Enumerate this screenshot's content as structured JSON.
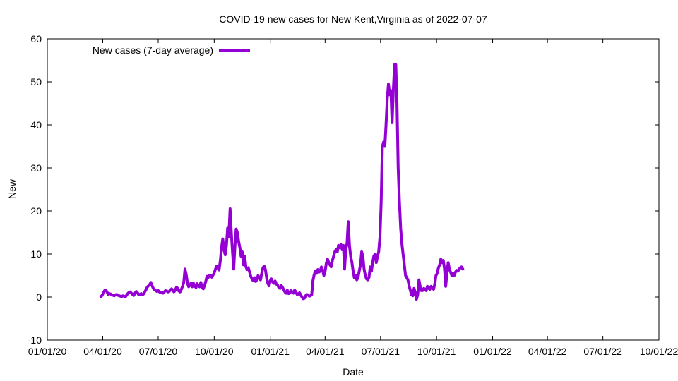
{
  "chart_data": {
    "type": "line",
    "title": "COVID-19 new cases for New Kent,Virginia as of 2022-07-07",
    "xlabel": "Date",
    "ylabel": "New",
    "ylim": [
      -10,
      60
    ],
    "yticks": [
      -10,
      0,
      10,
      20,
      30,
      40,
      50,
      60
    ],
    "xlim_days": [
      0,
      1004
    ],
    "xticks": [
      {
        "day": 0,
        "label": "01/01/20"
      },
      {
        "day": 91,
        "label": "04/01/20"
      },
      {
        "day": 182,
        "label": "07/01/20"
      },
      {
        "day": 274,
        "label": "10/01/20"
      },
      {
        "day": 366,
        "label": "01/01/21"
      },
      {
        "day": 456,
        "label": "04/01/21"
      },
      {
        "day": 547,
        "label": "07/01/21"
      },
      {
        "day": 639,
        "label": "10/01/21"
      },
      {
        "day": 731,
        "label": "01/01/22"
      },
      {
        "day": 821,
        "label": "04/01/22"
      },
      {
        "day": 912,
        "label": "07/01/22"
      },
      {
        "day": 1004,
        "label": "10/01/22"
      }
    ],
    "grid": false,
    "legend_position": "top-left",
    "series": [
      {
        "name": "New cases (7-day average)",
        "color": "#9400d3",
        "points": [
          [
            88,
            0.1
          ],
          [
            90,
            0.4
          ],
          [
            92,
            1.0
          ],
          [
            94,
            1.5
          ],
          [
            96,
            1.6
          ],
          [
            98,
            1.2
          ],
          [
            100,
            0.6
          ],
          [
            102,
            0.8
          ],
          [
            104,
            0.7
          ],
          [
            106,
            0.5
          ],
          [
            108,
            0.4
          ],
          [
            110,
            0.3
          ],
          [
            112,
            0.5
          ],
          [
            114,
            0.6
          ],
          [
            116,
            0.4
          ],
          [
            118,
            0.3
          ],
          [
            120,
            0.2
          ],
          [
            122,
            0.1
          ],
          [
            124,
            0.3
          ],
          [
            126,
            0.2
          ],
          [
            128,
            0.0
          ],
          [
            130,
            0.4
          ],
          [
            132,
            0.8
          ],
          [
            134,
            1.1
          ],
          [
            136,
            1.2
          ],
          [
            138,
            0.9
          ],
          [
            140,
            0.6
          ],
          [
            142,
            0.4
          ],
          [
            144,
            0.9
          ],
          [
            146,
            1.3
          ],
          [
            148,
            1.0
          ],
          [
            150,
            0.5
          ],
          [
            152,
            0.6
          ],
          [
            154,
            0.8
          ],
          [
            156,
            0.5
          ],
          [
            158,
            0.7
          ],
          [
            160,
            1.2
          ],
          [
            162,
            1.7
          ],
          [
            164,
            2.3
          ],
          [
            166,
            2.6
          ],
          [
            168,
            2.9
          ],
          [
            170,
            3.4
          ],
          [
            172,
            2.6
          ],
          [
            174,
            2.0
          ],
          [
            176,
            1.7
          ],
          [
            178,
            1.5
          ],
          [
            180,
            1.3
          ],
          [
            182,
            1.5
          ],
          [
            184,
            1.2
          ],
          [
            186,
            1.0
          ],
          [
            188,
            1.1
          ],
          [
            190,
            0.9
          ],
          [
            192,
            1.2
          ],
          [
            194,
            1.5
          ],
          [
            196,
            1.4
          ],
          [
            198,
            1.2
          ],
          [
            200,
            1.3
          ],
          [
            202,
            1.6
          ],
          [
            204,
            1.9
          ],
          [
            206,
            1.5
          ],
          [
            208,
            1.2
          ],
          [
            210,
            1.6
          ],
          [
            212,
            2.3
          ],
          [
            214,
            2.0
          ],
          [
            216,
            1.4
          ],
          [
            218,
            1.2
          ],
          [
            220,
            1.8
          ],
          [
            222,
            2.5
          ],
          [
            224,
            3.4
          ],
          [
            226,
            6.5
          ],
          [
            228,
            5.2
          ],
          [
            230,
            3.2
          ],
          [
            232,
            2.4
          ],
          [
            234,
            2.7
          ],
          [
            236,
            3.3
          ],
          [
            238,
            2.4
          ],
          [
            240,
            3.2
          ],
          [
            242,
            2.6
          ],
          [
            244,
            2.2
          ],
          [
            246,
            3.1
          ],
          [
            248,
            2.7
          ],
          [
            250,
            2.4
          ],
          [
            252,
            3.4
          ],
          [
            254,
            2.2
          ],
          [
            256,
            1.9
          ],
          [
            258,
            2.6
          ],
          [
            260,
            3.6
          ],
          [
            262,
            4.8
          ],
          [
            264,
            4.5
          ],
          [
            266,
            5.1
          ],
          [
            268,
            5.0
          ],
          [
            270,
            4.6
          ],
          [
            272,
            5.1
          ],
          [
            274,
            5.6
          ],
          [
            276,
            6.5
          ],
          [
            278,
            7.2
          ],
          [
            280,
            6.8
          ],
          [
            282,
            6.3
          ],
          [
            284,
            8.5
          ],
          [
            286,
            11.5
          ],
          [
            288,
            13.5
          ],
          [
            290,
            11.0
          ],
          [
            292,
            9.8
          ],
          [
            294,
            12.0
          ],
          [
            296,
            16.0
          ],
          [
            298,
            14.0
          ],
          [
            300,
            20.5
          ],
          [
            302,
            15.0
          ],
          [
            304,
            10.5
          ],
          [
            306,
            6.5
          ],
          [
            308,
            12.0
          ],
          [
            310,
            15.8
          ],
          [
            312,
            15.0
          ],
          [
            314,
            13.0
          ],
          [
            316,
            11.5
          ],
          [
            318,
            9.5
          ],
          [
            320,
            10.5
          ],
          [
            322,
            7.5
          ],
          [
            324,
            9.5
          ],
          [
            326,
            7.0
          ],
          [
            328,
            6.4
          ],
          [
            330,
            6.8
          ],
          [
            332,
            5.8
          ],
          [
            334,
            4.8
          ],
          [
            336,
            4.2
          ],
          [
            338,
            3.8
          ],
          [
            340,
            4.5
          ],
          [
            342,
            3.6
          ],
          [
            344,
            4.0
          ],
          [
            346,
            5.0
          ],
          [
            348,
            4.5
          ],
          [
            350,
            4.0
          ],
          [
            352,
            5.5
          ],
          [
            354,
            6.8
          ],
          [
            356,
            7.2
          ],
          [
            358,
            6.4
          ],
          [
            360,
            4.5
          ],
          [
            362,
            3.2
          ],
          [
            364,
            2.6
          ],
          [
            366,
            3.8
          ],
          [
            368,
            4.2
          ],
          [
            370,
            3.5
          ],
          [
            372,
            3.2
          ],
          [
            374,
            3.7
          ],
          [
            376,
            3.0
          ],
          [
            378,
            2.8
          ],
          [
            380,
            2.2
          ],
          [
            382,
            2.0
          ],
          [
            384,
            2.7
          ],
          [
            386,
            2.3
          ],
          [
            388,
            1.7
          ],
          [
            390,
            1.2
          ],
          [
            392,
            0.9
          ],
          [
            394,
            1.6
          ],
          [
            396,
            0.8
          ],
          [
            398,
            0.9
          ],
          [
            400,
            1.5
          ],
          [
            402,
            1.2
          ],
          [
            404,
            0.9
          ],
          [
            406,
            1.6
          ],
          [
            408,
            1.2
          ],
          [
            410,
            0.6
          ],
          [
            412,
            0.7
          ],
          [
            414,
            1.0
          ],
          [
            416,
            0.5
          ],
          [
            418,
            0.0
          ],
          [
            420,
            -0.4
          ],
          [
            422,
            -0.3
          ],
          [
            424,
            0.3
          ],
          [
            426,
            0.6
          ],
          [
            428,
            0.5
          ],
          [
            430,
            0.2
          ],
          [
            432,
            0.3
          ],
          [
            434,
            0.5
          ],
          [
            436,
            3.8
          ],
          [
            438,
            5.2
          ],
          [
            440,
            6.0
          ],
          [
            442,
            5.5
          ],
          [
            444,
            6.4
          ],
          [
            446,
            5.8
          ],
          [
            448,
            6.0
          ],
          [
            450,
            7.0
          ],
          [
            452,
            6.2
          ],
          [
            454,
            5.0
          ],
          [
            456,
            6.0
          ],
          [
            458,
            7.8
          ],
          [
            460,
            8.8
          ],
          [
            462,
            8.0
          ],
          [
            464,
            7.5
          ],
          [
            466,
            7.0
          ],
          [
            468,
            8.5
          ],
          [
            470,
            9.5
          ],
          [
            472,
            10.5
          ],
          [
            474,
            11.0
          ],
          [
            476,
            10.5
          ],
          [
            478,
            12.0
          ],
          [
            480,
            11.5
          ],
          [
            482,
            12.2
          ],
          [
            484,
            11.0
          ],
          [
            486,
            12.0
          ],
          [
            488,
            6.5
          ],
          [
            490,
            11.0
          ],
          [
            492,
            12.5
          ],
          [
            494,
            17.5
          ],
          [
            496,
            12.0
          ],
          [
            498,
            9.5
          ],
          [
            500,
            8.0
          ],
          [
            502,
            6.0
          ],
          [
            504,
            4.5
          ],
          [
            506,
            5.0
          ],
          [
            508,
            4.0
          ],
          [
            510,
            4.5
          ],
          [
            512,
            6.0
          ],
          [
            514,
            7.5
          ],
          [
            516,
            10.5
          ],
          [
            518,
            9.5
          ],
          [
            520,
            6.5
          ],
          [
            522,
            5.0
          ],
          [
            524,
            4.2
          ],
          [
            526,
            4.0
          ],
          [
            528,
            4.5
          ],
          [
            530,
            7.0
          ],
          [
            532,
            6.0
          ],
          [
            534,
            8.0
          ],
          [
            536,
            9.5
          ],
          [
            538,
            10.0
          ],
          [
            540,
            8.0
          ],
          [
            542,
            9.5
          ],
          [
            544,
            10.5
          ],
          [
            546,
            14.0
          ],
          [
            548,
            22.0
          ],
          [
            550,
            35.0
          ],
          [
            552,
            36.0
          ],
          [
            554,
            35.0
          ],
          [
            556,
            40.0
          ],
          [
            558,
            46.0
          ],
          [
            560,
            49.5
          ],
          [
            562,
            47.0
          ],
          [
            564,
            48.0
          ],
          [
            566,
            40.5
          ],
          [
            568,
            48.0
          ],
          [
            570,
            54.0
          ],
          [
            572,
            54.0
          ],
          [
            574,
            45.0
          ],
          [
            576,
            30.0
          ],
          [
            578,
            22.0
          ],
          [
            580,
            16.0
          ],
          [
            582,
            12.5
          ],
          [
            584,
            10.0
          ],
          [
            586,
            7.5
          ],
          [
            588,
            5.0
          ],
          [
            590,
            4.5
          ],
          [
            592,
            4.0
          ],
          [
            594,
            2.5
          ],
          [
            596,
            1.5
          ],
          [
            598,
            0.5
          ],
          [
            600,
            0.3
          ],
          [
            602,
            2.0
          ],
          [
            604,
            1.0
          ],
          [
            606,
            -0.5
          ],
          [
            608,
            0.5
          ],
          [
            610,
            4.0
          ],
          [
            612,
            2.5
          ],
          [
            614,
            1.5
          ],
          [
            616,
            1.5
          ],
          [
            618,
            2.0
          ],
          [
            620,
            1.8
          ],
          [
            622,
            1.5
          ],
          [
            624,
            2.5
          ],
          [
            626,
            2.0
          ],
          [
            628,
            1.8
          ],
          [
            630,
            2.5
          ],
          [
            632,
            2.2
          ],
          [
            634,
            1.8
          ],
          [
            636,
            3.0
          ],
          [
            638,
            5.0
          ],
          [
            640,
            5.5
          ],
          [
            642,
            6.8
          ],
          [
            644,
            7.5
          ],
          [
            646,
            8.8
          ],
          [
            648,
            8.0
          ],
          [
            650,
            8.5
          ],
          [
            652,
            6.5
          ],
          [
            654,
            2.5
          ],
          [
            656,
            5.5
          ],
          [
            658,
            8.0
          ],
          [
            660,
            6.5
          ],
          [
            662,
            5.8
          ],
          [
            664,
            5.0
          ],
          [
            666,
            5.5
          ],
          [
            668,
            5.0
          ],
          [
            670,
            5.8
          ],
          [
            672,
            6.2
          ],
          [
            674,
            6.0
          ],
          [
            676,
            6.5
          ],
          [
            678,
            6.8
          ],
          [
            680,
            7.0
          ],
          [
            682,
            6.5
          ]
        ]
      }
    ]
  }
}
